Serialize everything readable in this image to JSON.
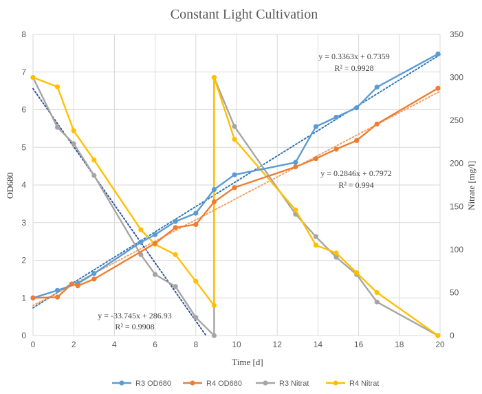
{
  "chart_data": {
    "type": "line",
    "title": "Constant Light Cultivation",
    "xlabel": "Time [d]",
    "ylabel_left": "OD680",
    "ylabel_right": "Nitrate [mg/l]",
    "xlim": [
      0,
      20
    ],
    "ylim_left": [
      0,
      8
    ],
    "ylim_right": [
      0,
      350
    ],
    "x_ticks": [
      "0",
      "2",
      "4",
      "6",
      "8",
      "10",
      "12",
      "14",
      "16",
      "18",
      "20"
    ],
    "y_left_ticks": [
      "0",
      "1",
      "2",
      "3",
      "4",
      "5",
      "6",
      "7",
      "8"
    ],
    "y_right_ticks": [
      "0",
      "50",
      "100",
      "150",
      "200",
      "250",
      "300",
      "350"
    ],
    "grid": true,
    "legend_position": "bottom",
    "series": [
      {
        "name": "R3 OD680",
        "axis": "left",
        "color": "#5B9BD5",
        "x": [
          0,
          1.2,
          2.2,
          3,
          5.3,
          6,
          7,
          8,
          8.9,
          9.9,
          12.9,
          13.9,
          14.9,
          15.9,
          16.9,
          19.9
        ],
        "y": [
          1.0,
          1.2,
          1.38,
          1.65,
          2.48,
          2.68,
          3.03,
          3.25,
          3.88,
          4.27,
          4.6,
          5.55,
          5.8,
          6.05,
          6.6,
          7.48
        ]
      },
      {
        "name": "R4 OD680",
        "axis": "left",
        "color": "#ED7D31",
        "x": [
          0,
          1.2,
          1.9,
          2.2,
          3,
          6,
          7,
          8,
          8.9,
          9.9,
          12.9,
          13.9,
          14.9,
          15.9,
          16.9,
          19.9
        ],
        "y": [
          1.0,
          1.02,
          1.37,
          1.32,
          1.5,
          2.45,
          2.87,
          2.95,
          3.55,
          3.93,
          4.48,
          4.7,
          4.95,
          5.18,
          5.62,
          6.57
        ]
      },
      {
        "name": "R3 Nitrat",
        "axis": "right",
        "color": "#A5A5A5",
        "x": [
          0,
          1.2,
          2,
          3,
          5.3,
          6,
          7,
          8,
          8.9,
          8.9,
          9.9,
          12.9,
          13.9,
          14.9,
          15.9,
          16.9,
          19.9
        ],
        "y": [
          300,
          242,
          223,
          186,
          94,
          71,
          57,
          21,
          0,
          300,
          243,
          141,
          115,
          91,
          71,
          39,
          0
        ]
      },
      {
        "name": "R4 Nitrat",
        "axis": "right",
        "color": "#FFC000",
        "x": [
          0,
          1.2,
          2,
          3,
          5.3,
          6,
          7,
          8,
          8.9,
          8.9,
          9.9,
          12.9,
          13.9,
          14.9,
          15.9,
          16.9,
          19.9
        ],
        "y": [
          300,
          289,
          238,
          204,
          123,
          106,
          94,
          63,
          35,
          300,
          228,
          146,
          105,
          96,
          73,
          50,
          0
        ]
      }
    ],
    "trendlines": [
      {
        "series": "R3 OD680",
        "color": "#2E75B6",
        "slope": 0.3363,
        "intercept": 0.7359,
        "x_range": [
          0,
          20
        ],
        "axis": "left",
        "equation": "y = 0.3363x + 0.7359",
        "r2": "R² = 0.9928"
      },
      {
        "series": "R4 OD680",
        "color": "#F4A064",
        "slope": 0.2846,
        "intercept": 0.7972,
        "x_range": [
          0,
          20
        ],
        "axis": "left",
        "equation": "y = 0.2846x + 0.7972",
        "r2": "R² = 0.994"
      },
      {
        "series": "R3 Nitrat",
        "color": "#2F5597",
        "slope": -33.745,
        "intercept": 286.93,
        "x_range": [
          0,
          8.5
        ],
        "axis": "right",
        "equation": "y = -33.745x + 286.93",
        "r2": "R² = 0.9908"
      }
    ]
  }
}
